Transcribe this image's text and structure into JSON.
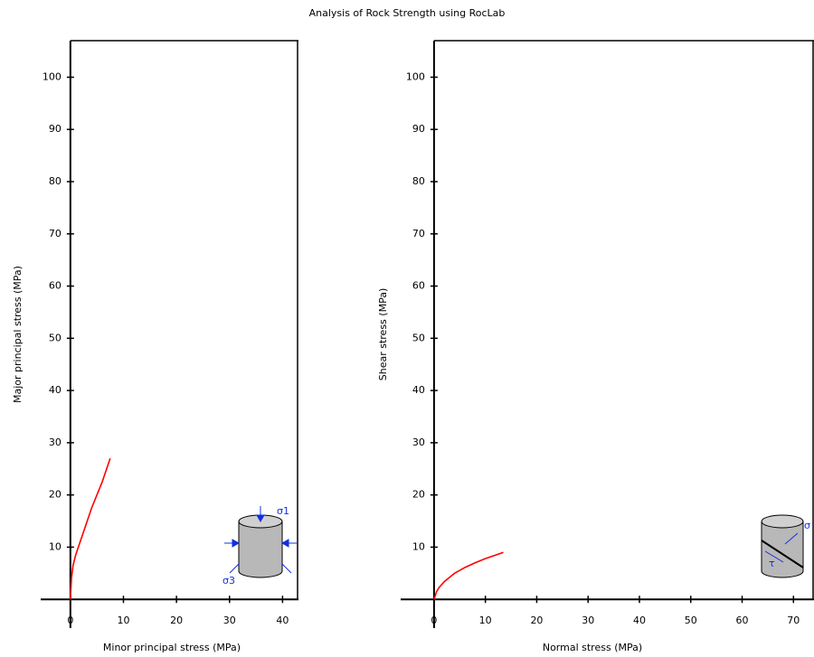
{
  "title": "Analysis of Rock Strength using RocLab",
  "chart_data": [
    {
      "type": "line",
      "xlabel": "Minor principal stress (MPa)",
      "ylabel": "Major principal stress (MPa)",
      "x": [
        0,
        0.2,
        0.5,
        1,
        2,
        3,
        4,
        5,
        6,
        7.5
      ],
      "series": [
        {
          "color": "#ff0000",
          "values": [
            0,
            4,
            6.5,
            8.5,
            11.5,
            14.5,
            17.5,
            20,
            22.5,
            27
          ]
        }
      ],
      "xlim": [
        -5.6,
        43
      ],
      "ylim": [
        -5.5,
        107
      ],
      "xticks": [
        0,
        10,
        20,
        30,
        40
      ],
      "yticks": [
        10,
        20,
        30,
        40,
        50,
        60,
        70,
        80,
        90,
        100
      ],
      "icon_labels": [
        "σ1",
        "σ3"
      ]
    },
    {
      "type": "line",
      "xlabel": "Normal stress (MPa)",
      "ylabel": "Shear stress (MPa)",
      "x": [
        0,
        0.5,
        1,
        2,
        4,
        6,
        8,
        10,
        13.5
      ],
      "series": [
        {
          "color": "#ff0000",
          "values": [
            0,
            1.5,
            2.3,
            3.4,
            5,
            6.1,
            7,
            7.8,
            9
          ]
        }
      ],
      "xlim": [
        -6.5,
        74
      ],
      "ylim": [
        -5.5,
        107
      ],
      "xticks": [
        0,
        10,
        20,
        30,
        40,
        50,
        60,
        70
      ],
      "yticks": [
        10,
        20,
        30,
        40,
        50,
        60,
        70,
        80,
        90,
        100
      ],
      "icon_labels": [
        "σ",
        "τ"
      ]
    }
  ]
}
